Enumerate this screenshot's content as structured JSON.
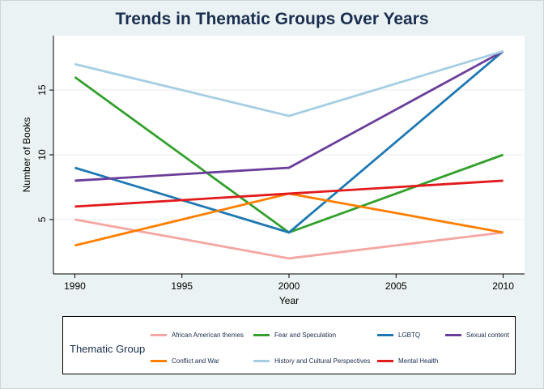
{
  "chart_data": {
    "type": "line",
    "title": "Trends in Thematic Groups Over Years",
    "xlabel": "Year",
    "ylabel": "Number of Books",
    "x": [
      1990,
      2000,
      2010
    ],
    "xlim": [
      1989,
      2011
    ],
    "ylim": [
      0.8,
      19.2
    ],
    "xticks": [
      "1990",
      "1995",
      "2000",
      "2005",
      "2010"
    ],
    "yticks": [
      "5",
      "10",
      "15"
    ],
    "grid": true,
    "legend_title": "Thematic Group",
    "legend_position": "bottom",
    "series": [
      {
        "name": "African American themes",
        "values": [
          5,
          2,
          4
        ],
        "color": "#f4a6a3"
      },
      {
        "name": "Fear and Speculation",
        "values": [
          16,
          4,
          10
        ],
        "color": "#33a02c"
      },
      {
        "name": "LGBTQ",
        "values": [
          9,
          4,
          18
        ],
        "color": "#1f78b4"
      },
      {
        "name": "Sexual content",
        "values": [
          8,
          9,
          18
        ],
        "color": "#6a3d9a"
      },
      {
        "name": "Conflict and War",
        "values": [
          3,
          7,
          4
        ],
        "color": "#ff7f00"
      },
      {
        "name": "History and Cultural Perspectives",
        "values": [
          17,
          13,
          18
        ],
        "color": "#a6cee3"
      },
      {
        "name": "Mental Health",
        "values": [
          6,
          7,
          8
        ],
        "color": "#e31a1c"
      }
    ]
  }
}
